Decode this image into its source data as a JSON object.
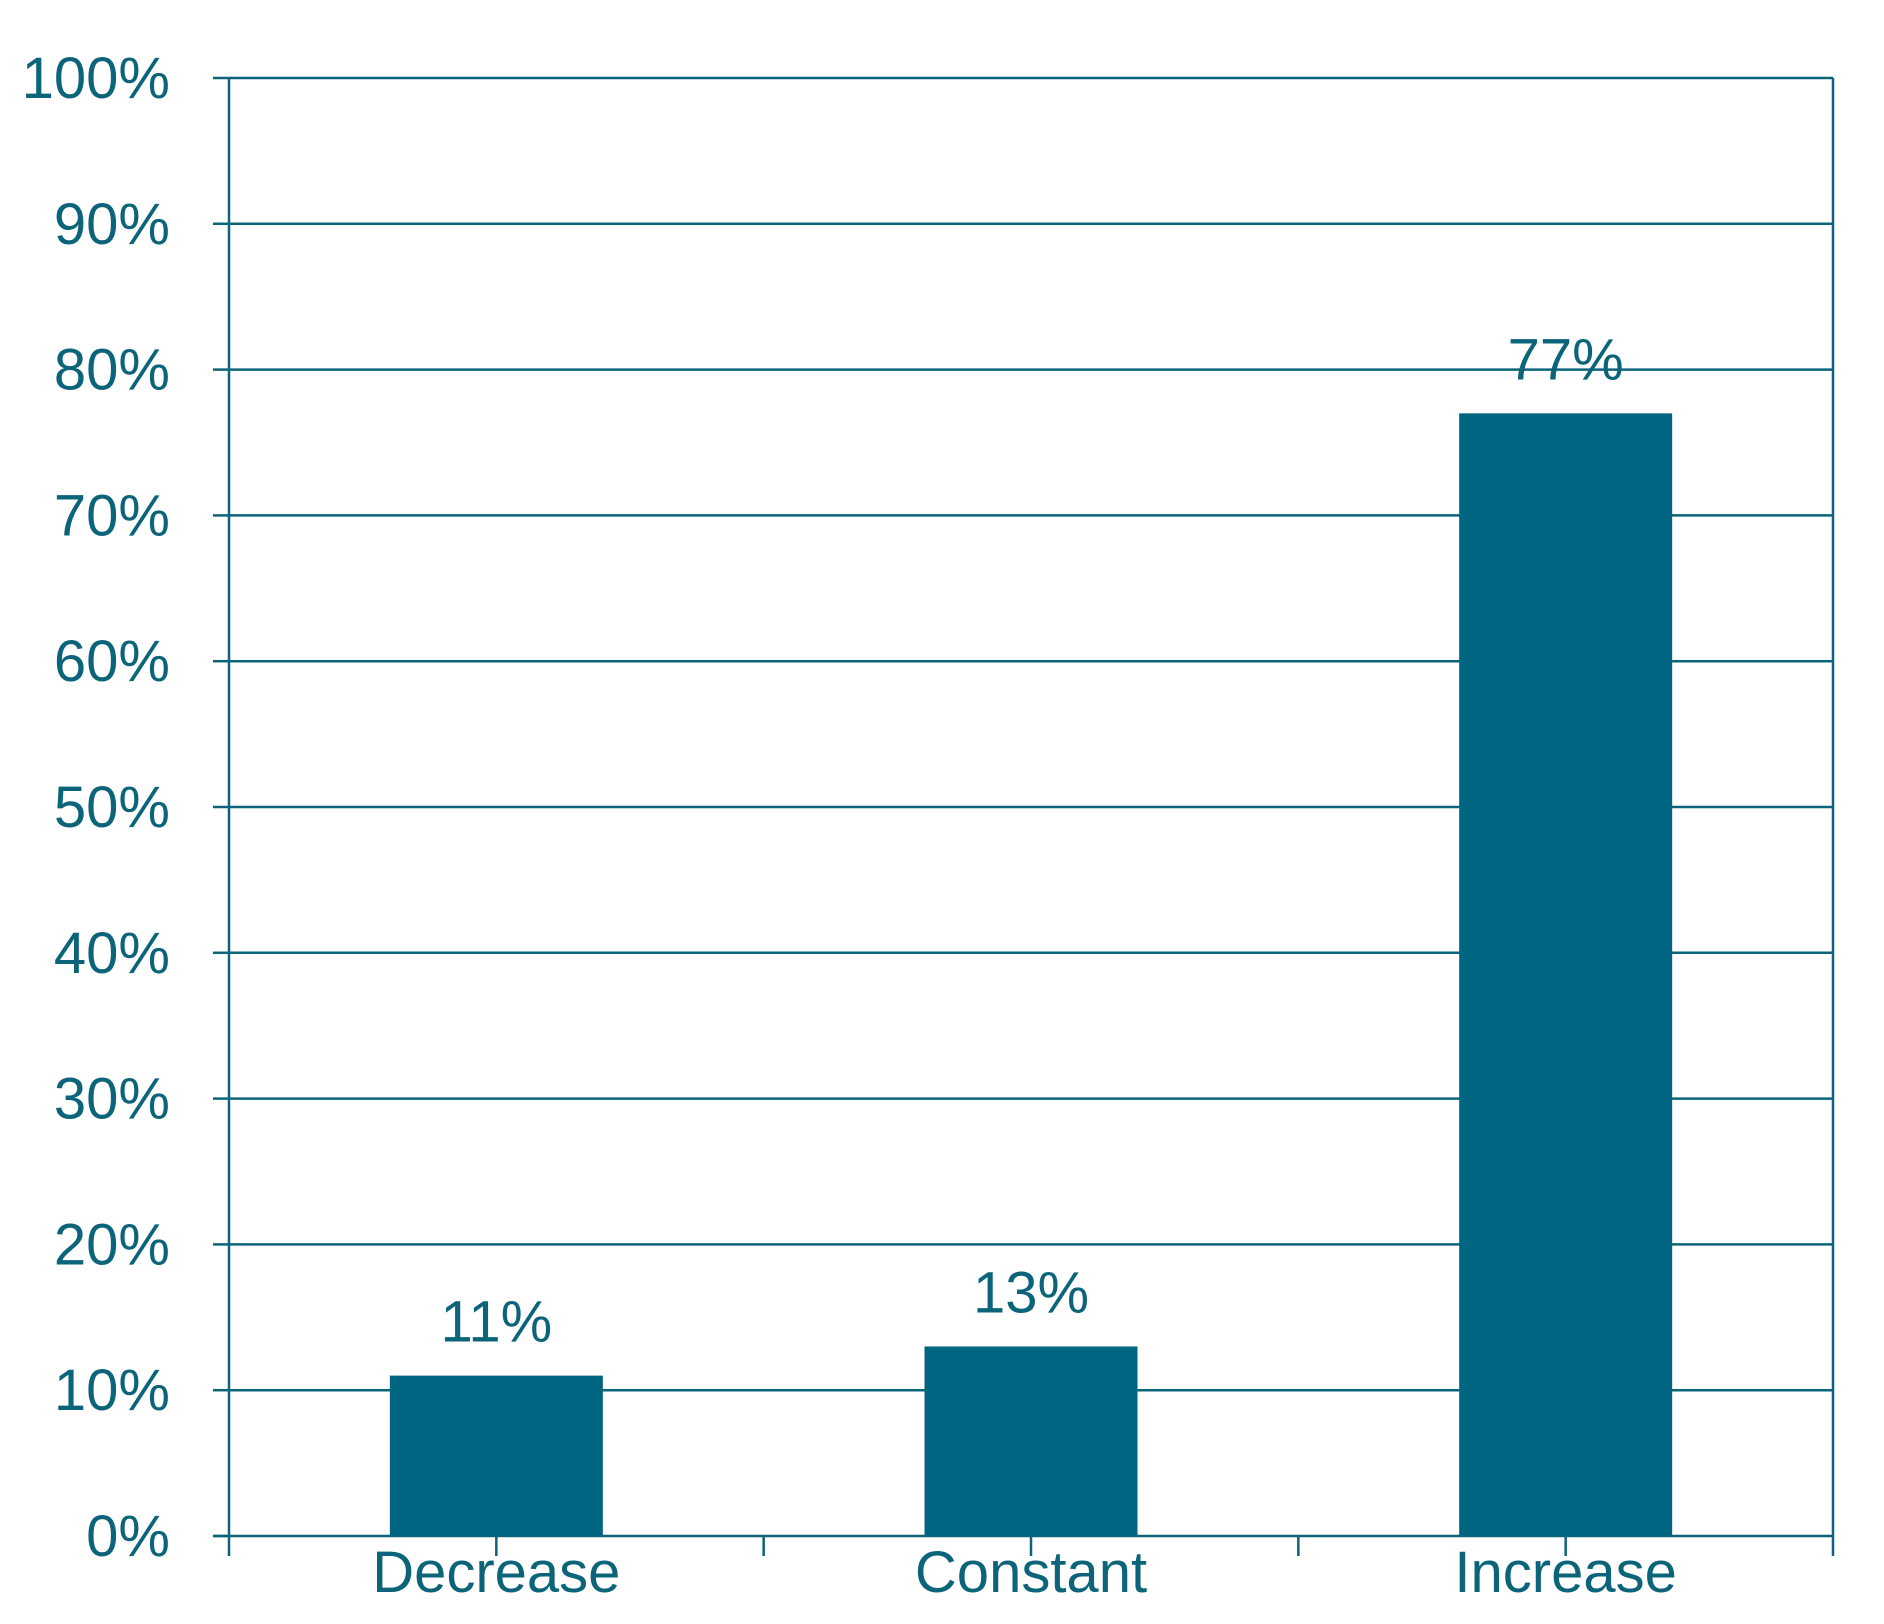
{
  "chart_data": {
    "type": "bar",
    "title": "",
    "xlabel": "",
    "ylabel": "",
    "categories": [
      "Decrease",
      "Constant",
      "Increase"
    ],
    "values": [
      11,
      13,
      77
    ],
    "value_labels": [
      "11%",
      "13%",
      "77%"
    ],
    "ylim": [
      0,
      100
    ],
    "yticks": [
      0,
      10,
      20,
      30,
      40,
      50,
      60,
      70,
      80,
      90,
      100
    ],
    "ytick_labels": [
      "0%",
      "10%",
      "20%",
      "30%",
      "40%",
      "50%",
      "60%",
      "70%",
      "80%",
      "90%",
      "100%"
    ],
    "grid": true,
    "legend": "none",
    "colors": {
      "bar": "#006580",
      "text": "#0b6479",
      "axis": "#0b6479",
      "grid": "#0b6479",
      "background": "#ffffff"
    }
  }
}
